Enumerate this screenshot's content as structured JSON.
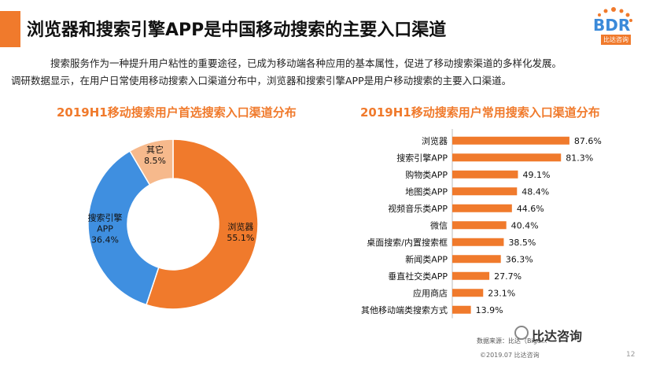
{
  "header": {
    "title": "浏览器和搜索引擎APP是中国移动搜索的主要入口渠道",
    "logo_text": "BDR",
    "logo_sub": "比达咨询"
  },
  "intro": {
    "line1": "搜索服务作为一种提升用户粘性的重要途径，已成为移动端各种应用的基本属性，促进了移动搜索渠道的多样化发展。",
    "line2": "调研数据显示，在用户日常使用移动搜索入口渠道分布中，浏览器和搜索引擎APP是用户移动搜索的主要入口渠道。"
  },
  "footer": {
    "source": "数据来源：比达（Bigd...",
    "copyright": "©2019.07 比达咨询",
    "page": "12",
    "watermark": "比达咨询"
  },
  "colors": {
    "orange": "#f07a2c",
    "blue": "#3f8fe0",
    "light_orange": "#f6b98c"
  },
  "chart_data": [
    {
      "type": "pie",
      "title": "2019H1移动搜索用户首选搜索入口渠道分布",
      "slices": [
        {
          "label": "浏览器",
          "value": 55.1,
          "display": "55.1%",
          "color": "#f07a2c"
        },
        {
          "label": "搜索引擎APP",
          "value": 36.4,
          "display": "36.4%",
          "color": "#3f8fe0"
        },
        {
          "label": "其它",
          "value": 8.5,
          "display": "8.5%",
          "color": "#f6b98c"
        }
      ]
    },
    {
      "type": "bar",
      "orientation": "horizontal",
      "title": "2019H1移动搜索用户常用搜索入口渠道分布",
      "color": "#f07a2c",
      "categories": [
        "浏览器",
        "搜索引擎APP",
        "购物类APP",
        "地图类APP",
        "视频音乐类APP",
        "微信",
        "桌面搜索/内置搜索框",
        "新闻类APP",
        "垂直社交类APP",
        "应用商店",
        "其他移动端类搜索方式"
      ],
      "values": [
        87.6,
        81.3,
        49.1,
        48.4,
        44.6,
        40.4,
        38.5,
        36.3,
        27.7,
        23.1,
        13.9
      ],
      "labels": [
        "87.6%",
        "81.3%",
        "49.1%",
        "48.4%",
        "44.6%",
        "40.4%",
        "38.5%",
        "36.3%",
        "27.7%",
        "23.1%",
        "13.9%"
      ],
      "xlim": [
        0,
        100
      ]
    }
  ]
}
